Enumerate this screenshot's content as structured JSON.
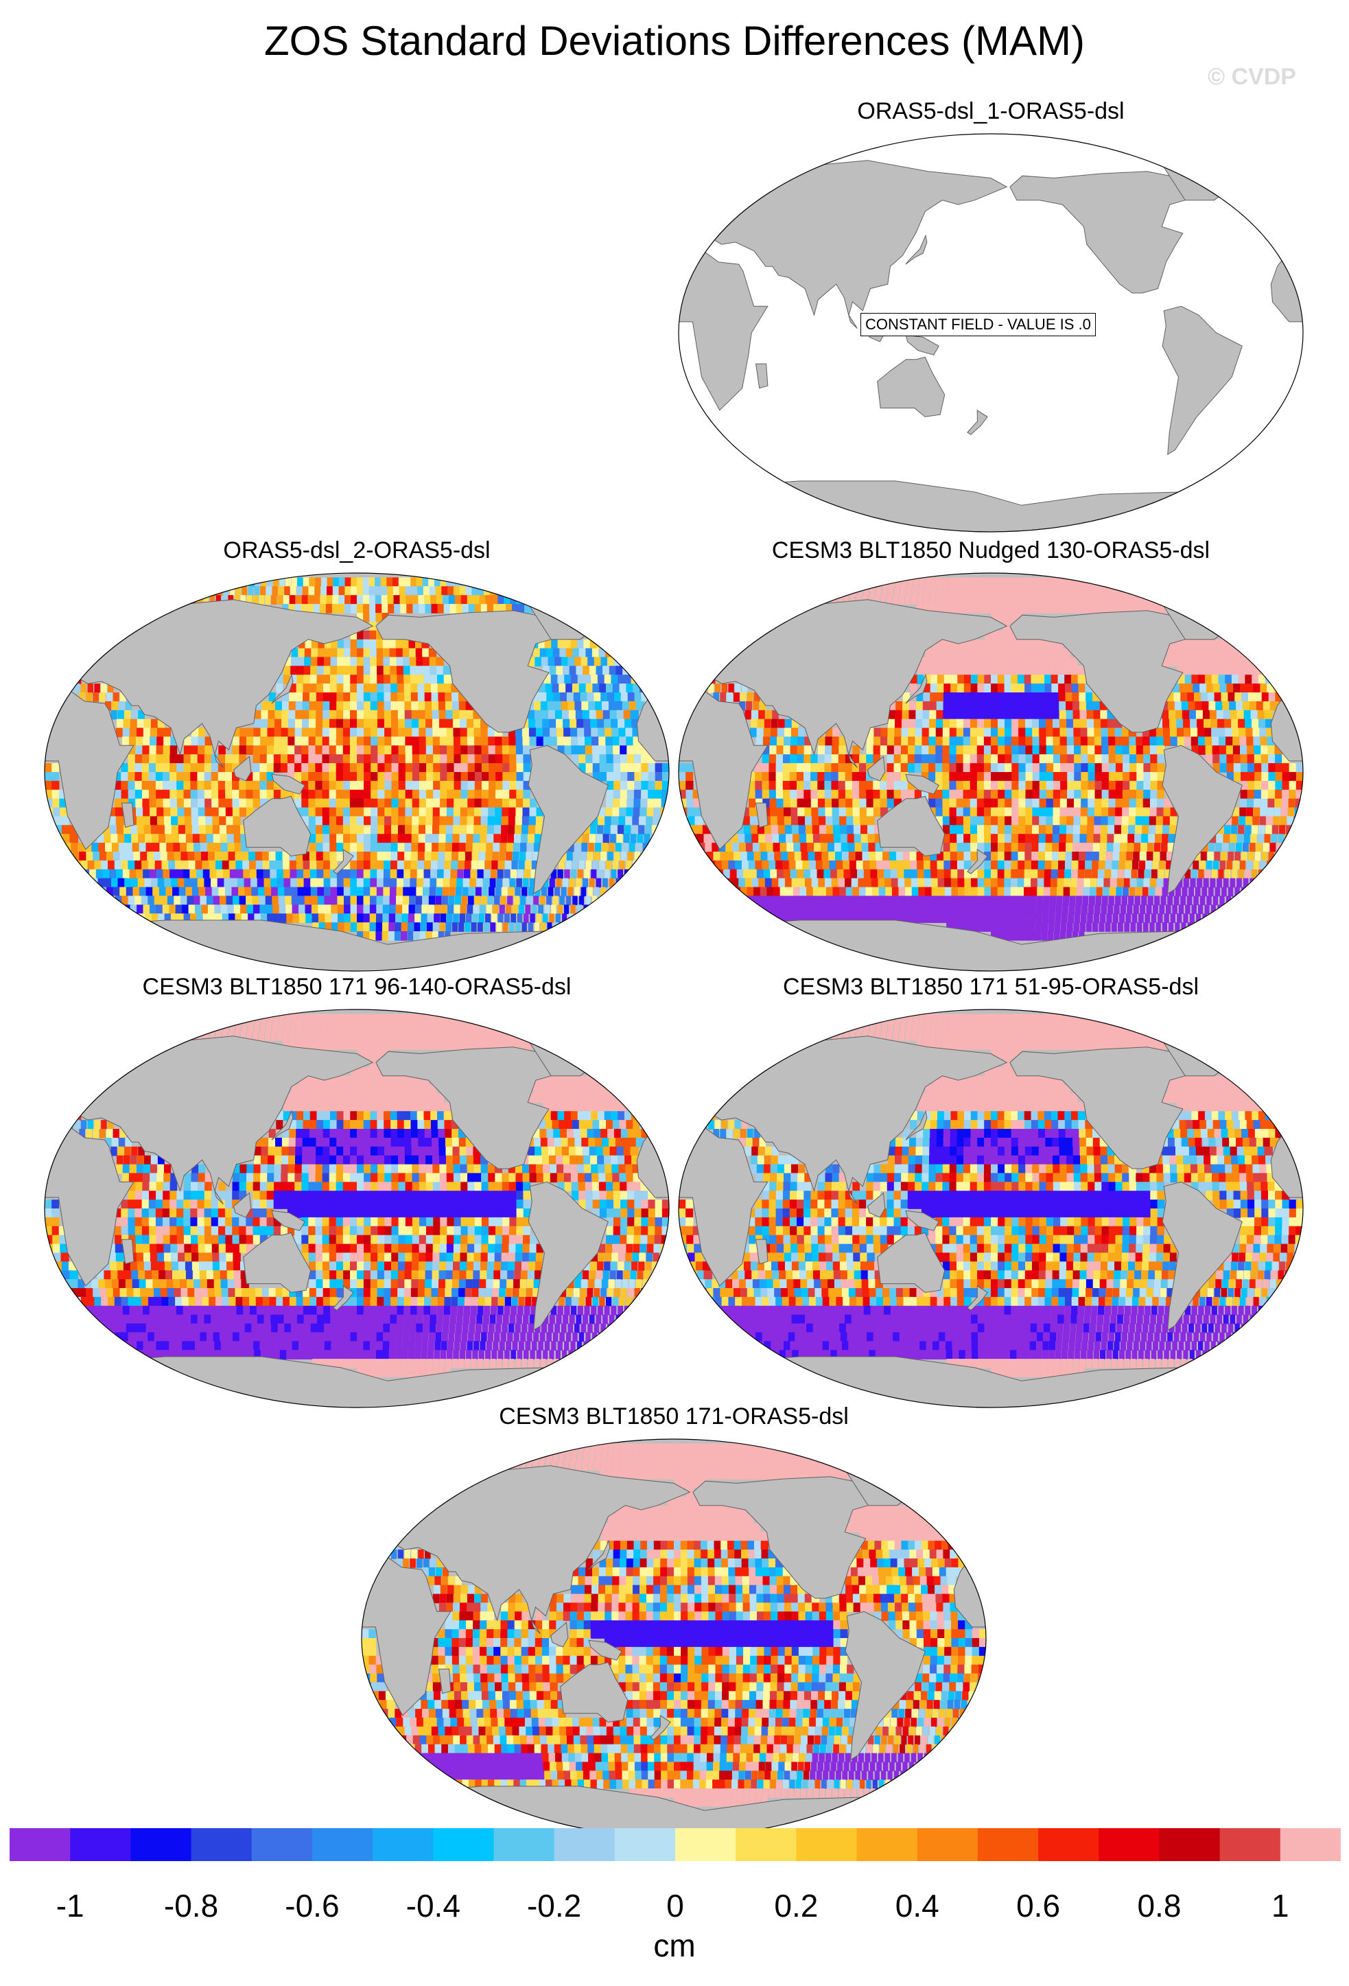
{
  "title": "ZOS Standard Deviations Differences (MAM)",
  "watermark": "© CVDP",
  "constant_field_text": "CONSTANT FIELD - VALUE IS .0",
  "panels": [
    {
      "title": "ORAS5-dsl_1-ORAS5-dsl",
      "field": "constant",
      "value": 0.0
    },
    {
      "title": "ORAS5-dsl_2-ORAS5-dsl",
      "field": "difference",
      "pattern": "mixed-small"
    },
    {
      "title": "CESM3 BLT1850 Nudged 130-ORAS5-dsl",
      "field": "difference",
      "pattern": "high-pink"
    },
    {
      "title": "CESM3 BLT1850 171 96-140-ORAS5-dsl",
      "field": "difference",
      "pattern": "strong-neg-south"
    },
    {
      "title": "CESM3 BLT1850 171 51-95-ORAS5-dsl",
      "field": "difference",
      "pattern": "strong-neg-south"
    },
    {
      "title": "CESM3 BLT1850 171-ORAS5-dsl",
      "field": "difference",
      "pattern": "mixed-strong"
    }
  ],
  "colorbar": {
    "units": "cm",
    "tick_labels": [
      "-1",
      "-0.8",
      "-0.6",
      "-0.4",
      "-0.2",
      "0",
      "0.2",
      "0.4",
      "0.6",
      "0.8",
      "1"
    ],
    "colors": [
      "#8a2be2",
      "#3f10f5",
      "#0a0af5",
      "#2a44e0",
      "#3c70e8",
      "#2a8cf0",
      "#18aaf8",
      "#00c4ff",
      "#5cc8f0",
      "#9ccff0",
      "#b8e0f4",
      "#fff7a0",
      "#fde055",
      "#fcc72a",
      "#fba81a",
      "#fa8510",
      "#f75508",
      "#f52008",
      "#e8000a",
      "#c8000c",
      "#dc4040",
      "#f8b3b5"
    ]
  },
  "map_colors": {
    "land": "#bebebe",
    "ocean_constant": "#ffffff",
    "coastline": "#606060"
  }
}
